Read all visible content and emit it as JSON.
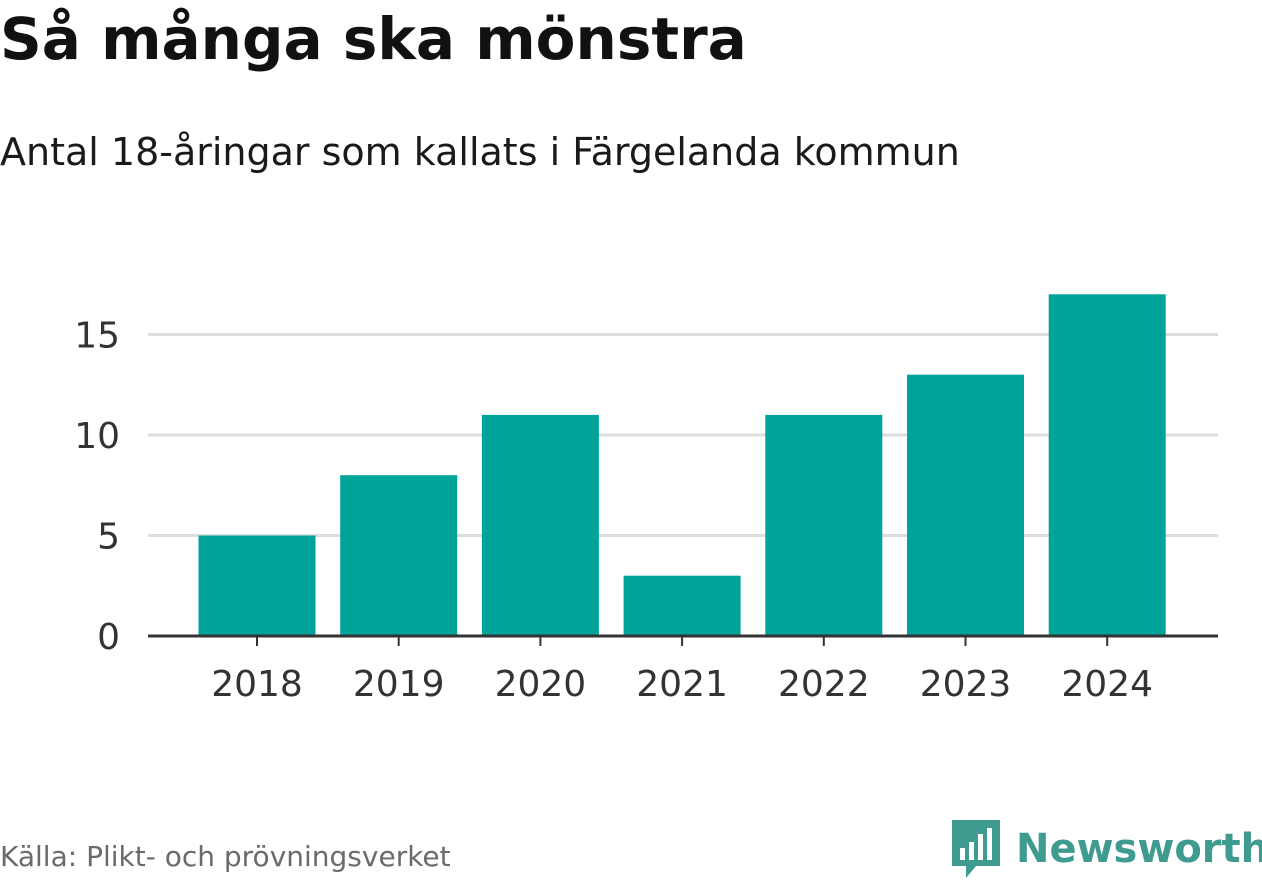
{
  "header": {
    "title": "Så många ska mönstra",
    "subtitle": "Antal 18-åringar som kallats i Färgelanda kommun"
  },
  "footer": {
    "source": "Källa: Plikt- och prövningsverket",
    "brand": "Newsworthy"
  },
  "colors": {
    "bar": "#00a39a",
    "grid": "#dddddd",
    "axis": "#333333",
    "tick_text": "#333333",
    "brand": "#3f9a8f"
  },
  "chart_data": {
    "type": "bar",
    "title": "Så många ska mönstra",
    "subtitle": "Antal 18-åringar som kallats i Färgelanda kommun",
    "categories": [
      "2018",
      "2019",
      "2020",
      "2021",
      "2022",
      "2023",
      "2024"
    ],
    "values": [
      5,
      8,
      11,
      3,
      11,
      13,
      17
    ],
    "xlabel": "",
    "ylabel": "",
    "ylim": [
      0,
      17
    ],
    "yticks": [
      0,
      5,
      10,
      15
    ],
    "ytick_labels": [
      "0",
      "5",
      "10",
      "15"
    ],
    "grid": true,
    "legend": "none"
  }
}
